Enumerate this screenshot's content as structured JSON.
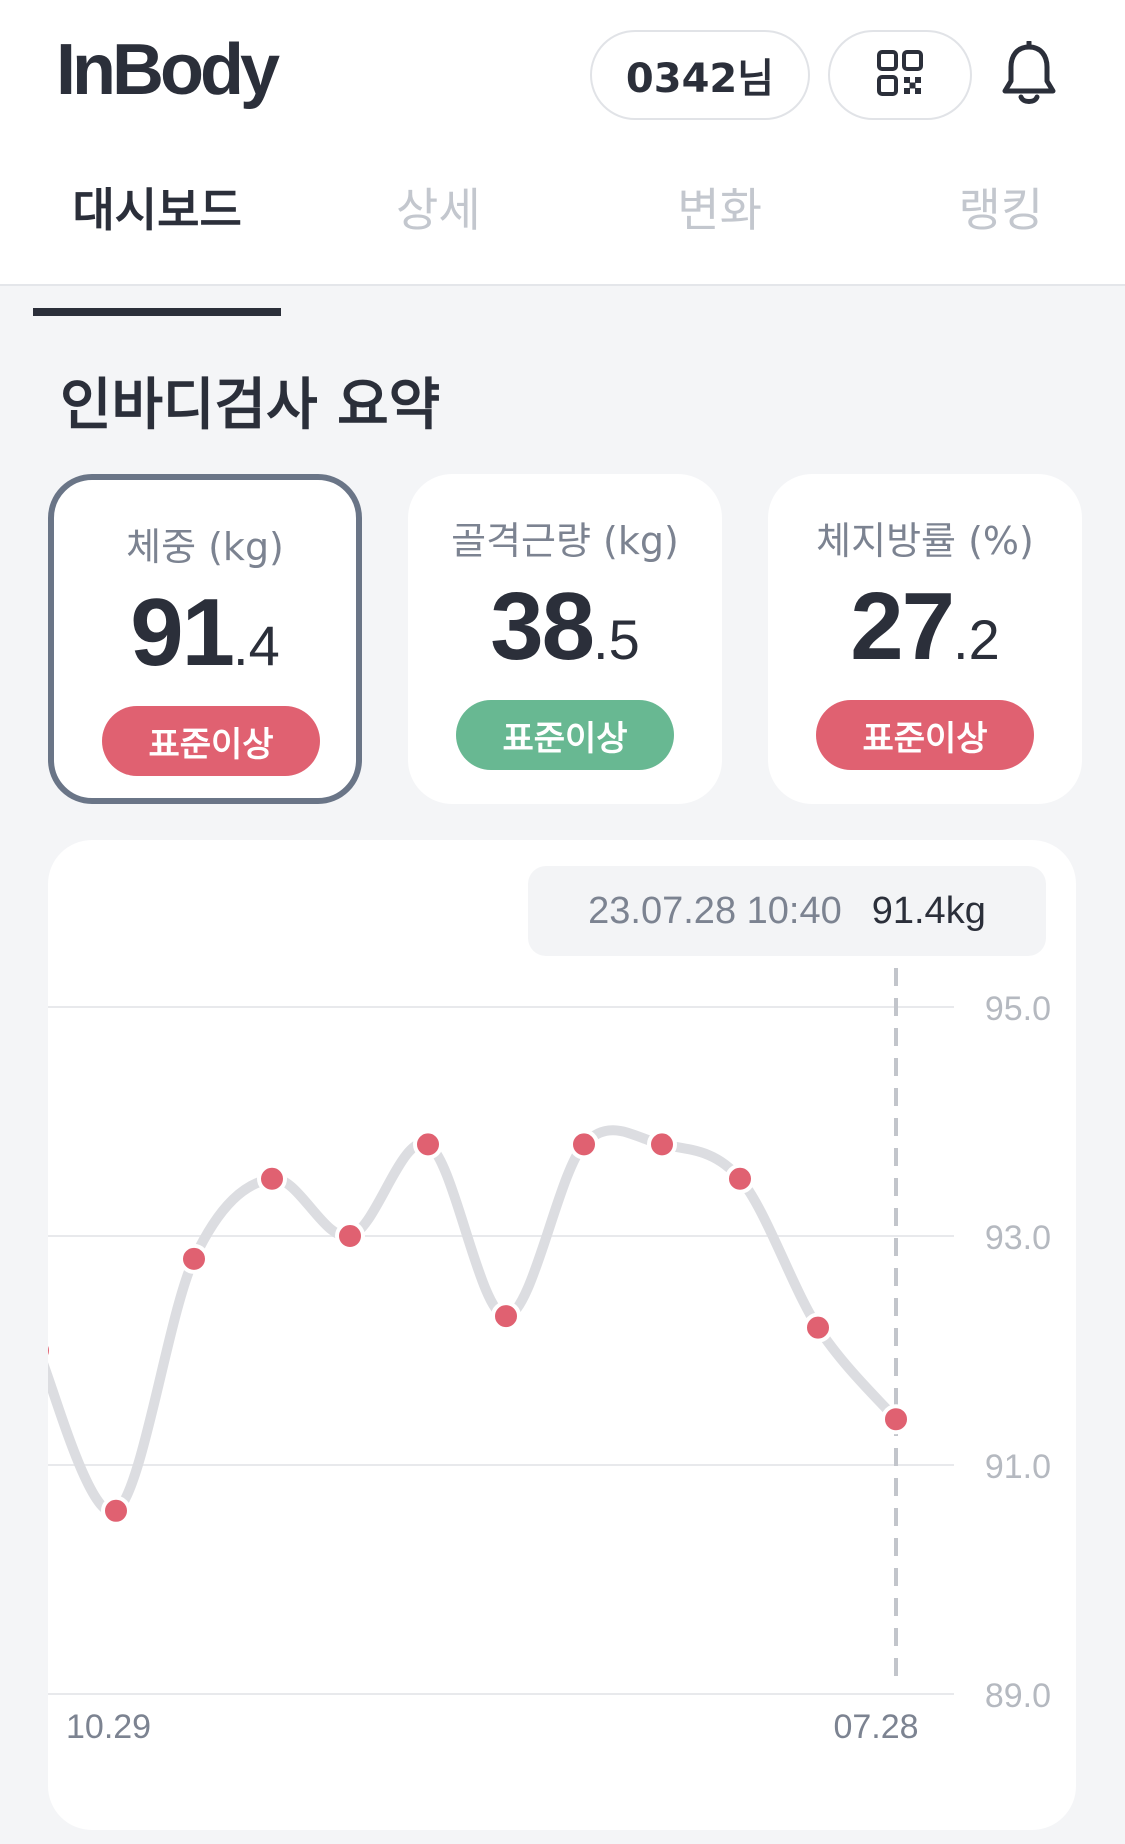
{
  "header": {
    "logo": "InBody",
    "user_label": "0342님",
    "qr_icon": "qr-code-icon",
    "bell_icon": "bell-icon"
  },
  "tabs": [
    {
      "label": "대시보드",
      "active": true
    },
    {
      "label": "상세",
      "active": false
    },
    {
      "label": "변화",
      "active": false
    },
    {
      "label": "랭킹",
      "active": false
    }
  ],
  "summary": {
    "title": "인바디검사 요약",
    "cards": [
      {
        "label": "체중 (kg)",
        "int": "91",
        "dec": ".4",
        "badge": "표준이상",
        "badge_color": "#e06171",
        "selected": true
      },
      {
        "label": "골격근량 (kg)",
        "int": "38",
        "dec": ".5",
        "badge": "표준이상",
        "badge_color": "#68b892",
        "selected": false
      },
      {
        "label": "체지방률 (%)",
        "int": "27",
        "dec": ".2",
        "badge": "표준이상",
        "badge_color": "#e06171",
        "selected": false
      }
    ]
  },
  "colors": {
    "point": "#e06171",
    "line": "#dcdde1",
    "grid": "#e8e9ec",
    "tick": "#b5b9c0"
  },
  "chart_data": {
    "type": "line",
    "tooltip": {
      "date": "23.07.28 10:40",
      "value": "91.4kg"
    },
    "y_ticks": [
      "95.0",
      "93.0",
      "91.0",
      "89.0"
    ],
    "ylim": [
      89.0,
      95.0
    ],
    "x_labels": [
      "10.29",
      "07.28"
    ],
    "series": [
      {
        "values": [
          92.0,
          90.6,
          92.8,
          93.5,
          93.0,
          93.8,
          92.3,
          93.8,
          93.8,
          93.5,
          92.2,
          91.4
        ]
      }
    ]
  }
}
